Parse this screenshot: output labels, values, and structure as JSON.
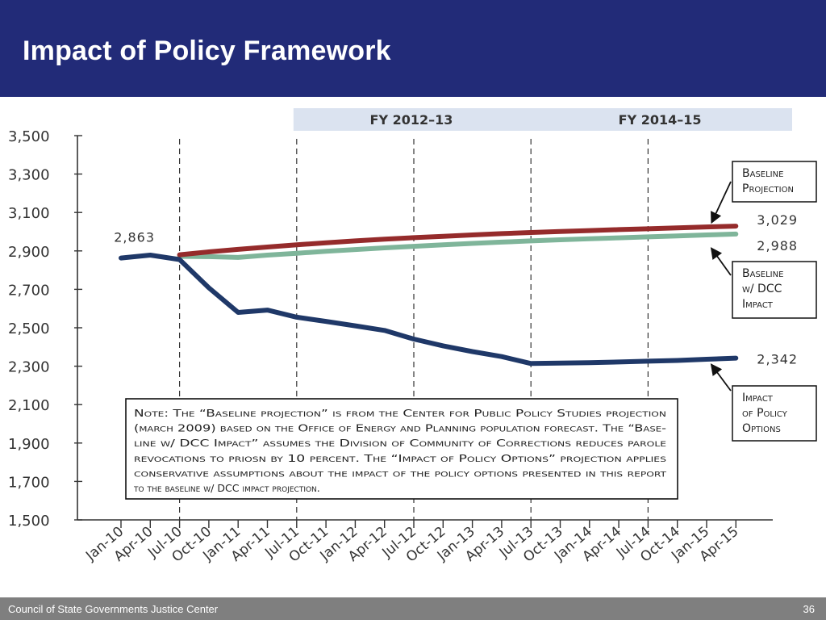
{
  "slide": {
    "title": "Impact of Policy Framework",
    "footer_left": "Council of State Governments Justice Center",
    "page_number": "36"
  },
  "colors": {
    "title_bar": "#222b78",
    "footer_bar": "#7f7f7f",
    "baseline": "#952b2b",
    "baseline_dcc": "#7fb59a",
    "policy": "#1f3868",
    "period_band": "#dbe3f0"
  },
  "chart_data": {
    "type": "line",
    "categories": [
      "Jan-10",
      "Apr-10",
      "Jul-10",
      "Oct-10",
      "Jan-11",
      "Apr-11",
      "Jul-11",
      "Oct-11",
      "Jan-12",
      "Apr-12",
      "Jul-12",
      "Oct-12",
      "Jan-13",
      "Apr-13",
      "Jul-13",
      "Oct-13",
      "Jan-14",
      "Apr-14",
      "Jul-14",
      "Oct-14",
      "Jan-15",
      "Apr-15"
    ],
    "ylim": [
      1500,
      3500
    ],
    "yticks": [
      "1,500",
      "1,700",
      "1,900",
      "2,100",
      "2,300",
      "2,500",
      "2,700",
      "2,900",
      "3,100",
      "3,300",
      "3,500"
    ],
    "grid": false,
    "periods": [
      {
        "label": "FY 2012–13",
        "from": "Jul-11",
        "to": "Jul-13"
      },
      {
        "label": "FY 2014–15",
        "from": "Jul-13",
        "to": "Apr-15"
      }
    ],
    "vertical_dashed_lines_at": [
      "Jul-10",
      "Jul-11",
      "Jul-12",
      "Jul-13",
      "Jul-14"
    ],
    "series": [
      {
        "name": "Baseline Projection",
        "key": "baseline",
        "x": [
          "Jul-10",
          "Oct-10",
          "Jan-11",
          "Apr-11",
          "Jul-11",
          "Oct-11",
          "Jan-12",
          "Apr-12",
          "Jul-12",
          "Oct-12",
          "Jan-13",
          "Apr-13",
          "Jul-13",
          "Oct-13",
          "Jan-14",
          "Apr-14",
          "Jul-14",
          "Oct-14",
          "Jan-15",
          "Apr-15"
        ],
        "values": [
          2880,
          2895,
          2908,
          2920,
          2932,
          2942,
          2952,
          2961,
          2969,
          2976,
          2983,
          2990,
          2996,
          3001,
          3006,
          3011,
          3015,
          3020,
          3025,
          3029
        ]
      },
      {
        "name": "Baseline w/ DCC Impact",
        "key": "baseline_dcc",
        "x": [
          "Jul-10",
          "Oct-10",
          "Jan-11",
          "Apr-11",
          "Jul-11",
          "Oct-11",
          "Jan-12",
          "Apr-12",
          "Jul-12",
          "Oct-12",
          "Jan-13",
          "Apr-13",
          "Jul-13",
          "Oct-13",
          "Jan-14",
          "Apr-14",
          "Jul-14",
          "Oct-14",
          "Jan-15",
          "Apr-15"
        ],
        "values": [
          2872,
          2870,
          2866,
          2878,
          2888,
          2898,
          2907,
          2916,
          2924,
          2932,
          2939,
          2946,
          2952,
          2958,
          2963,
          2968,
          2973,
          2978,
          2983,
          2988
        ]
      },
      {
        "name": "Impact of Policy Options",
        "key": "policy",
        "x": [
          "Jan-10",
          "Apr-10",
          "Jul-10",
          "Oct-10",
          "Jan-11",
          "Apr-11",
          "Jul-11",
          "Oct-11",
          "Jan-12",
          "Apr-12",
          "Jul-12",
          "Oct-12",
          "Jan-13",
          "Apr-13",
          "Jul-13",
          "Oct-13",
          "Jan-14",
          "Apr-14",
          "Jul-14",
          "Oct-14",
          "Jan-15",
          "Apr-15"
        ],
        "values": [
          2863,
          2878,
          2855,
          2708,
          2580,
          2592,
          2555,
          2533,
          2510,
          2486,
          2441,
          2406,
          2376,
          2350,
          2314,
          2316,
          2318,
          2322,
          2326,
          2330,
          2336,
          2342
        ]
      }
    ],
    "value_labels": [
      {
        "text": "2,863",
        "series": "policy",
        "at": "Jan-10"
      },
      {
        "text": "3,029",
        "series": "baseline",
        "at": "Apr-15"
      },
      {
        "text": "2,988",
        "series": "baseline_dcc",
        "at": "Apr-15"
      },
      {
        "text": "2,342",
        "series": "policy",
        "at": "Apr-15"
      }
    ],
    "callouts": [
      {
        "series": "baseline",
        "lines": [
          "Baseline",
          "Projection"
        ]
      },
      {
        "series": "baseline_dcc",
        "lines": [
          "Baseline",
          "w/ DCC",
          "Impact"
        ]
      },
      {
        "series": "policy",
        "lines": [
          "Impact",
          "of Policy",
          "Options"
        ]
      }
    ],
    "note_lines": [
      "Note: The “Baseline projection” is from the Center for Public Policy Studies projection",
      "(march 2009) based on the Office of Energy and Planning population forecast. The “Base-",
      "line w/ DCC Impact” assumes the Division of Community of Corrections reduces parole",
      "revocations to priosn by 10 percent. The “Impact of Policy Options” projection applies",
      "conservative assumptions about the impact of the policy options presented in this report",
      "to the baseline w/ DCC impact projection."
    ]
  }
}
